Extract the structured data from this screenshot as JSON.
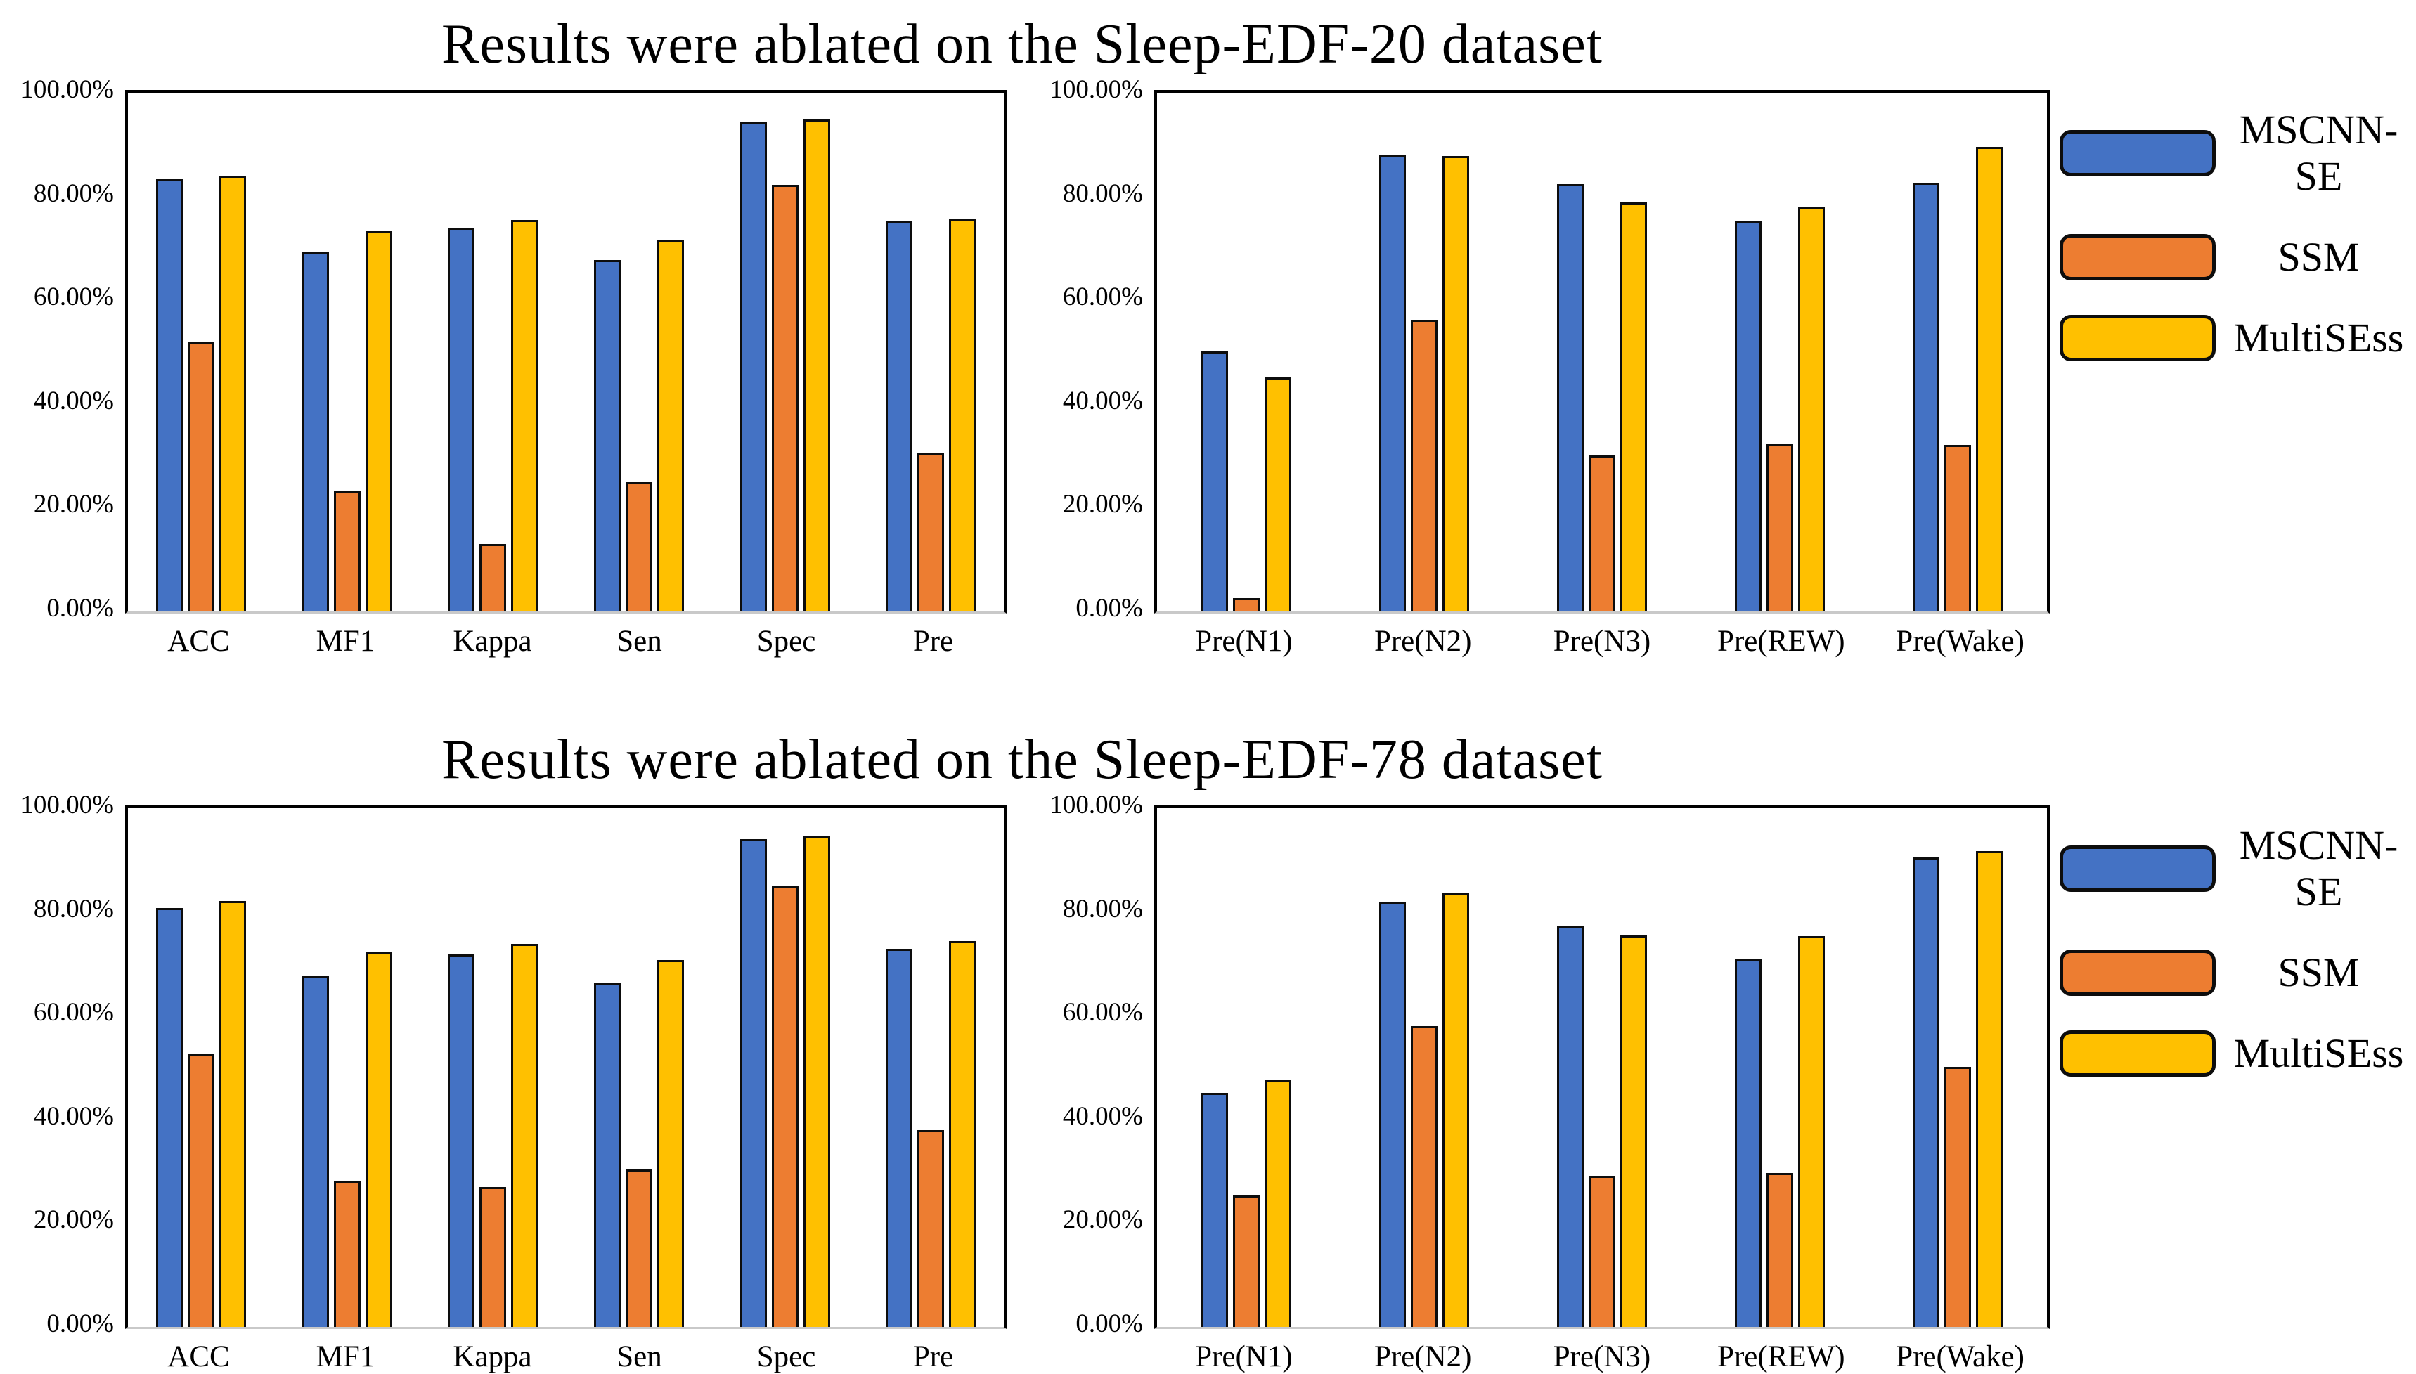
{
  "colors": {
    "mscnn_se": "#4472C4",
    "ssm": "#ED7D31",
    "multisess": "#FFC000",
    "bar_border": "#0d0d0d",
    "plot_border": "#000000",
    "baseline": "#c9c9c9",
    "background": "#ffffff"
  },
  "legend": {
    "position": "right",
    "items": [
      {
        "label": "MSCNN-SE",
        "color": "#4472C4"
      },
      {
        "label": "SSM",
        "color": "#ED7D31"
      },
      {
        "label": "MultiSEss",
        "color": "#FFC000"
      }
    ]
  },
  "y_axis": {
    "min": 0,
    "max": 100,
    "unit": "%",
    "grid": false,
    "ticks": [
      {
        "label": "100.00%",
        "value": 100
      },
      {
        "label": "80.00%",
        "value": 80
      },
      {
        "label": "60.00%",
        "value": 60
      },
      {
        "label": "40.00%",
        "value": 40
      },
      {
        "label": "20.00%",
        "value": 20
      },
      {
        "label": "0.00%",
        "value": 0
      }
    ]
  },
  "chart_data": [
    {
      "type": "bar",
      "title": "Results were ablated on the Sleep-EDF-20 dataset",
      "panel": "overall-metrics",
      "ylim": [
        0,
        100
      ],
      "yticks": [
        "0.00%",
        "20.00%",
        "40.00%",
        "60.00%",
        "80.00%",
        "100.00%"
      ],
      "grid": false,
      "legend_position": "right",
      "categories": [
        "ACC",
        "MF1",
        "Kappa",
        "Sen",
        "Spec",
        "Pre"
      ],
      "series": [
        {
          "name": "MSCNN-SE",
          "values": [
            83.3,
            69.3,
            74.0,
            67.8,
            94.4,
            75.3
          ]
        },
        {
          "name": "SSM",
          "values": [
            52.0,
            23.3,
            13.0,
            25.0,
            82.3,
            30.5
          ]
        },
        {
          "name": "MultiSEss",
          "values": [
            84.0,
            73.3,
            75.5,
            71.7,
            94.8,
            75.6
          ]
        }
      ]
    },
    {
      "type": "bar",
      "title": "Results were ablated on the Sleep-EDF-20 dataset",
      "panel": "per-class-precision",
      "ylim": [
        0,
        100
      ],
      "yticks": [
        "0.00%",
        "20.00%",
        "40.00%",
        "60.00%",
        "80.00%",
        "100.00%"
      ],
      "grid": false,
      "legend_position": "right",
      "categories": [
        "Pre(N1)",
        "Pre(N2)",
        "Pre(N3)",
        "Pre(REW)",
        "Pre(Wake)"
      ],
      "series": [
        {
          "name": "MSCNN-SE",
          "values": [
            50.1,
            88.0,
            82.4,
            75.3,
            82.7
          ]
        },
        {
          "name": "SSM",
          "values": [
            2.6,
            56.2,
            30.1,
            32.3,
            32.1
          ]
        },
        {
          "name": "MultiSEss",
          "values": [
            45.1,
            87.8,
            78.9,
            78.1,
            89.6
          ]
        }
      ]
    },
    {
      "type": "bar",
      "title": "Results were ablated on the Sleep-EDF-78 dataset",
      "panel": "overall-metrics",
      "ylim": [
        0,
        100
      ],
      "yticks": [
        "0.00%",
        "20.00%",
        "40.00%",
        "60.00%",
        "80.00%",
        "100.00%"
      ],
      "grid": false,
      "legend_position": "right",
      "categories": [
        "ACC",
        "MF1",
        "Kappa",
        "Sen",
        "Spec",
        "Pre"
      ],
      "series": [
        {
          "name": "MSCNN-SE",
          "values": [
            80.8,
            67.8,
            71.8,
            66.2,
            94.0,
            72.9
          ]
        },
        {
          "name": "SSM",
          "values": [
            52.7,
            28.2,
            26.9,
            30.4,
            85.0,
            38.0
          ]
        },
        {
          "name": "MultiSEss",
          "values": [
            82.1,
            72.2,
            73.9,
            70.7,
            94.6,
            74.4
          ]
        }
      ]
    },
    {
      "type": "bar",
      "title": "Results were ablated on the Sleep-EDF-78 dataset",
      "panel": "per-class-precision",
      "ylim": [
        0,
        100
      ],
      "yticks": [
        "0.00%",
        "20.00%",
        "40.00%",
        "60.00%",
        "80.00%",
        "100.00%"
      ],
      "grid": false,
      "legend_position": "right",
      "categories": [
        "Pre(N1)",
        "Pre(N2)",
        "Pre(N3)",
        "Pre(REW)",
        "Pre(Wake)"
      ],
      "series": [
        {
          "name": "MSCNN-SE",
          "values": [
            45.1,
            82.0,
            77.3,
            71.0,
            90.5
          ]
        },
        {
          "name": "SSM",
          "values": [
            25.3,
            58.0,
            29.2,
            29.7,
            50.2
          ]
        },
        {
          "name": "MultiSEss",
          "values": [
            47.7,
            83.7,
            75.5,
            75.3,
            91.7
          ]
        }
      ]
    }
  ]
}
